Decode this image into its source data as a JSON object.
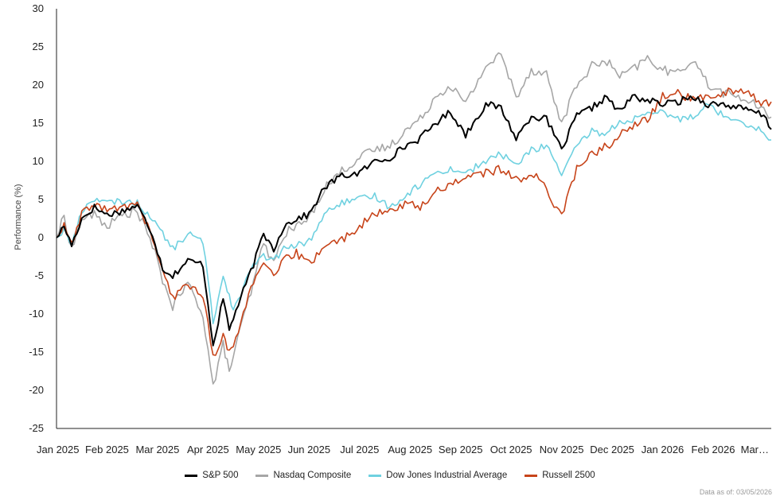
{
  "chart_data": {
    "type": "line",
    "title": "",
    "xlabel": "",
    "ylabel": "Performance (%)",
    "ylim": [
      -25,
      30
    ],
    "yticks": [
      -25,
      -20,
      -15,
      -10,
      -5,
      0,
      5,
      10,
      15,
      20,
      25,
      30
    ],
    "grid": false,
    "legend_position": "bottom-center",
    "x_tick_labels": [
      "Jan 2025",
      "Feb 2025",
      "Mar 2025",
      "Apr 2025",
      "May 2025",
      "Jun 2025",
      "Jul 2025",
      "Aug 2025",
      "Sep 2025",
      "Oct 2025",
      "Nov 2025",
      "Dec 2025",
      "Jan 2026",
      "Feb 2026",
      "Mar…"
    ],
    "x_tick_months": [
      0,
      1,
      2,
      3,
      4,
      5,
      6,
      7,
      8,
      9,
      10,
      11,
      12,
      13,
      14
    ],
    "x_range_months": [
      0,
      14.15
    ],
    "series": [
      {
        "name": "S&P 500",
        "color": "#000000",
        "x": [
          0,
          0.15,
          0.3,
          0.5,
          0.75,
          1.0,
          1.3,
          1.6,
          1.9,
          2.1,
          2.3,
          2.6,
          2.9,
          3.1,
          3.3,
          3.42,
          3.5,
          3.7,
          3.9,
          4.1,
          4.3,
          4.5,
          4.75,
          5.0,
          5.3,
          5.6,
          6.0,
          6.3,
          6.6,
          6.9,
          7.2,
          7.5,
          7.8,
          8.1,
          8.5,
          8.8,
          9.1,
          9.4,
          9.7,
          9.85,
          10.0,
          10.3,
          10.6,
          10.9,
          11.0,
          11.15,
          11.4,
          11.7,
          12.0,
          12.3,
          12.6,
          12.9,
          13.2,
          13.5,
          13.8,
          14.0,
          14.15
        ],
        "values": [
          0,
          1.5,
          -1.0,
          2.5,
          4.0,
          3.0,
          3.5,
          4.2,
          0.5,
          -4.0,
          -5.0,
          -3.0,
          -3.5,
          -14.0,
          -8.0,
          -12.0,
          -10.5,
          -7.0,
          -3.5,
          0.5,
          -1.5,
          1.5,
          2.5,
          3.0,
          6.5,
          8.0,
          8.5,
          10.0,
          10.5,
          12.0,
          13.0,
          15.0,
          16.5,
          13.5,
          17.5,
          17.0,
          13.0,
          16.0,
          15.5,
          13.5,
          11.5,
          16.0,
          17.0,
          18.5,
          17.5,
          16.5,
          18.5,
          18.0,
          17.5,
          17.8,
          18.5,
          17.5,
          17.5,
          17.0,
          16.5,
          16.0,
          14.2
        ]
      },
      {
        "name": "Nasdaq Composite",
        "color": "#a6a6a6",
        "x": [
          0,
          0.15,
          0.3,
          0.5,
          0.75,
          1.0,
          1.3,
          1.6,
          1.9,
          2.1,
          2.3,
          2.6,
          2.9,
          3.1,
          3.3,
          3.42,
          3.5,
          3.7,
          3.9,
          4.1,
          4.3,
          4.5,
          4.75,
          5.0,
          5.3,
          5.6,
          6.0,
          6.3,
          6.6,
          6.9,
          7.2,
          7.5,
          7.8,
          8.1,
          8.5,
          8.8,
          9.1,
          9.4,
          9.7,
          9.85,
          10.0,
          10.3,
          10.6,
          10.9,
          11.0,
          11.15,
          11.4,
          11.7,
          12.0,
          12.3,
          12.6,
          12.9,
          13.2,
          13.5,
          13.8,
          14.0,
          14.15
        ],
        "values": [
          0,
          2.8,
          -1.5,
          2.5,
          3.0,
          1.5,
          3.0,
          3.5,
          -1.0,
          -5.5,
          -9.0,
          -6.0,
          -10.0,
          -19.5,
          -14.0,
          -17.5,
          -15.5,
          -10.5,
          -6.0,
          -0.5,
          -3.5,
          0.5,
          1.5,
          2.5,
          6.5,
          8.5,
          10.5,
          11.5,
          12.0,
          14.0,
          15.5,
          18.5,
          20.0,
          17.5,
          22.5,
          24.0,
          18.5,
          22.0,
          21.5,
          18.0,
          15.0,
          20.0,
          22.5,
          23.0,
          22.5,
          21.0,
          22.0,
          23.5,
          22.0,
          21.5,
          23.5,
          20.0,
          19.0,
          18.5,
          17.5,
          16.5,
          15.8
        ]
      },
      {
        "name": "Dow Jones Industrial Average",
        "color": "#6fd1e0",
        "x": [
          0,
          0.15,
          0.3,
          0.5,
          0.75,
          1.0,
          1.3,
          1.6,
          1.9,
          2.1,
          2.3,
          2.6,
          2.9,
          3.1,
          3.3,
          3.42,
          3.5,
          3.7,
          3.9,
          4.1,
          4.3,
          4.5,
          4.75,
          5.0,
          5.3,
          5.6,
          6.0,
          6.3,
          6.6,
          6.9,
          7.2,
          7.5,
          7.8,
          8.1,
          8.5,
          8.8,
          9.1,
          9.4,
          9.7,
          9.85,
          10.0,
          10.3,
          10.6,
          10.9,
          11.0,
          11.15,
          11.4,
          11.7,
          12.0,
          12.3,
          12.6,
          12.9,
          13.2,
          13.5,
          13.8,
          14.0,
          14.15
        ],
        "values": [
          0,
          1.0,
          -1.0,
          3.5,
          5.2,
          4.5,
          4.8,
          4.5,
          2.5,
          0.5,
          -1.5,
          0.5,
          -0.5,
          -11.0,
          -5.0,
          -7.5,
          -9.5,
          -6.5,
          -3.5,
          -2.5,
          -3.0,
          -1.5,
          -1.0,
          -0.5,
          3.0,
          4.5,
          5.0,
          5.5,
          4.0,
          5.5,
          7.0,
          8.5,
          9.0,
          8.5,
          10.0,
          11.0,
          9.5,
          11.5,
          12.0,
          10.5,
          8.0,
          12.0,
          14.0,
          13.5,
          14.5,
          15.0,
          15.5,
          16.0,
          16.5,
          15.5,
          16.0,
          17.5,
          16.0,
          15.5,
          14.5,
          13.8,
          12.8
        ]
      },
      {
        "name": "Russell 2500",
        "color": "#c7441a",
        "x": [
          0,
          0.15,
          0.3,
          0.5,
          0.75,
          1.0,
          1.3,
          1.6,
          1.9,
          2.1,
          2.3,
          2.6,
          2.9,
          3.1,
          3.3,
          3.42,
          3.5,
          3.7,
          3.9,
          4.1,
          4.3,
          4.5,
          4.75,
          5.0,
          5.3,
          5.6,
          6.0,
          6.3,
          6.6,
          6.9,
          7.2,
          7.5,
          7.8,
          8.1,
          8.5,
          8.8,
          9.1,
          9.4,
          9.7,
          9.85,
          10.0,
          10.3,
          10.6,
          10.9,
          11.0,
          11.15,
          11.4,
          11.7,
          12.0,
          12.3,
          12.6,
          12.9,
          13.2,
          13.5,
          13.8,
          14.0,
          14.15
        ],
        "values": [
          0,
          1.5,
          -1.0,
          3.0,
          4.5,
          3.5,
          4.0,
          4.5,
          0.0,
          -4.5,
          -8.0,
          -6.0,
          -7.5,
          -15.5,
          -13.0,
          -15.0,
          -14.5,
          -9.5,
          -6.0,
          -3.5,
          -5.0,
          -3.0,
          -2.0,
          -3.5,
          -1.0,
          -0.5,
          1.5,
          3.0,
          3.5,
          4.5,
          4.0,
          6.0,
          7.0,
          8.0,
          8.5,
          9.0,
          7.5,
          8.5,
          6.5,
          4.5,
          3.0,
          9.0,
          11.0,
          12.0,
          12.5,
          13.5,
          14.5,
          15.5,
          18.5,
          19.0,
          18.0,
          18.5,
          19.0,
          19.5,
          18.5,
          17.5,
          17.8
        ]
      }
    ]
  },
  "footnote": "Data as of: 03/05/2026"
}
